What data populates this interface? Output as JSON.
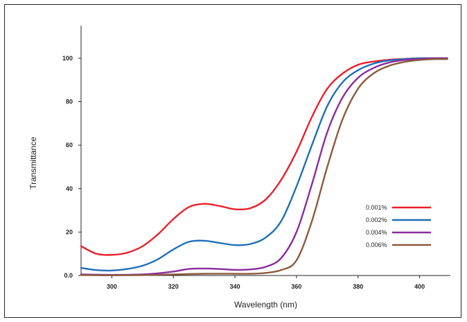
{
  "chart_data": {
    "type": "line",
    "xlabel": "Wavelength (nm)",
    "ylabel": "Transmittance",
    "xlim": [
      290,
      410
    ],
    "ylim": [
      0,
      115
    ],
    "x_ticks": [
      300,
      320,
      340,
      360,
      380,
      400
    ],
    "y_ticks": [
      0,
      20,
      40,
      60,
      80,
      100
    ],
    "y_tick_labels": [
      "0.0",
      "20",
      "40",
      "60",
      "80",
      "100"
    ],
    "legend_position": "right",
    "series": [
      {
        "name": "0.001%",
        "color": "#e8202a",
        "points": [
          [
            290,
            13.5
          ],
          [
            295,
            10
          ],
          [
            300,
            9.5
          ],
          [
            305,
            10.5
          ],
          [
            310,
            13.5
          ],
          [
            315,
            19
          ],
          [
            320,
            26
          ],
          [
            325,
            31.5
          ],
          [
            330,
            33
          ],
          [
            335,
            32
          ],
          [
            340,
            30.5
          ],
          [
            345,
            31
          ],
          [
            350,
            35
          ],
          [
            355,
            44
          ],
          [
            360,
            57
          ],
          [
            365,
            73
          ],
          [
            370,
            86
          ],
          [
            375,
            93
          ],
          [
            380,
            97
          ],
          [
            385,
            98.5
          ],
          [
            390,
            99.3
          ],
          [
            395,
            99.7
          ],
          [
            400,
            100
          ],
          [
            405,
            100
          ],
          [
            409,
            100
          ]
        ]
      },
      {
        "name": "0.002%",
        "color": "#1f6fb8",
        "points": [
          [
            290,
            3.5
          ],
          [
            295,
            2.5
          ],
          [
            300,
            2.3
          ],
          [
            305,
            3
          ],
          [
            310,
            4.5
          ],
          [
            315,
            7.5
          ],
          [
            320,
            12
          ],
          [
            325,
            15.5
          ],
          [
            330,
            16
          ],
          [
            335,
            15
          ],
          [
            340,
            14
          ],
          [
            345,
            14.5
          ],
          [
            350,
            17.5
          ],
          [
            355,
            25
          ],
          [
            360,
            41
          ],
          [
            365,
            60
          ],
          [
            370,
            78
          ],
          [
            375,
            89
          ],
          [
            380,
            94.5
          ],
          [
            385,
            97.5
          ],
          [
            390,
            99
          ],
          [
            395,
            99.6
          ],
          [
            400,
            100
          ],
          [
            405,
            100
          ],
          [
            409,
            100
          ]
        ]
      },
      {
        "name": "0.004%",
        "color": "#8a2a9e",
        "points": [
          [
            290,
            0.5
          ],
          [
            300,
            0.3
          ],
          [
            310,
            0.5
          ],
          [
            315,
            1
          ],
          [
            320,
            1.8
          ],
          [
            325,
            3
          ],
          [
            330,
            3.2
          ],
          [
            335,
            3
          ],
          [
            340,
            2.6
          ],
          [
            345,
            2.8
          ],
          [
            350,
            4
          ],
          [
            355,
            8
          ],
          [
            360,
            20
          ],
          [
            365,
            42
          ],
          [
            370,
            66
          ],
          [
            375,
            82
          ],
          [
            380,
            91
          ],
          [
            385,
            95.5
          ],
          [
            390,
            98
          ],
          [
            395,
            99.2
          ],
          [
            400,
            99.7
          ],
          [
            405,
            100
          ],
          [
            409,
            100
          ]
        ]
      },
      {
        "name": "0.006%",
        "color": "#8b5a3a",
        "points": [
          [
            290,
            0.2
          ],
          [
            300,
            0.1
          ],
          [
            310,
            0.2
          ],
          [
            320,
            0.5
          ],
          [
            330,
            0.8
          ],
          [
            340,
            0.8
          ],
          [
            345,
            0.8
          ],
          [
            350,
            1.2
          ],
          [
            355,
            2.5
          ],
          [
            360,
            7
          ],
          [
            365,
            25
          ],
          [
            370,
            50
          ],
          [
            375,
            72
          ],
          [
            380,
            86
          ],
          [
            385,
            93
          ],
          [
            390,
            96.5
          ],
          [
            395,
            98.3
          ],
          [
            400,
            99.2
          ],
          [
            405,
            99.6
          ],
          [
            409,
            99.6
          ]
        ]
      }
    ]
  }
}
